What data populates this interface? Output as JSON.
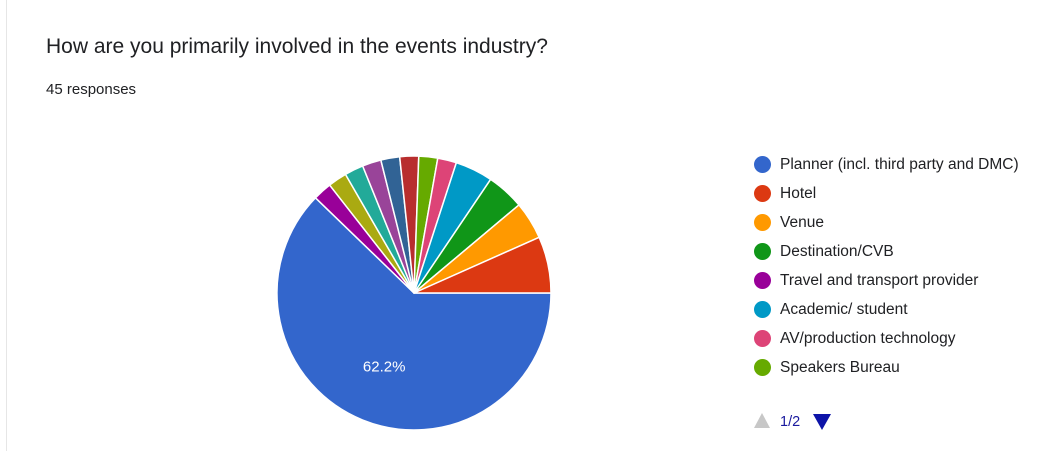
{
  "question": {
    "title": "How are you primarily involved in the events industry?",
    "responses": "45 responses"
  },
  "chart_data": {
    "type": "pie",
    "total_responses": 45,
    "labels": [
      "Planner (incl. third party and DMC)",
      "Hotel",
      "Venue",
      "Destination/CVB",
      "Travel and transport provider",
      "Academic/ student",
      "AV/production technology",
      "Speakers Bureau",
      "",
      "",
      "",
      "",
      ""
    ],
    "values": [
      28,
      3,
      2,
      2,
      1,
      2,
      1,
      1,
      1,
      1,
      1,
      1,
      1
    ],
    "colors": [
      "#3366cc",
      "#dc3912",
      "#ff9900",
      "#109618",
      "#990099",
      "#0099c6",
      "#dd4477",
      "#66aa00",
      "#b82e2e",
      "#316395",
      "#994499",
      "#22aa99",
      "#aaaa11"
    ],
    "slice_labels": [
      "62.2%",
      "",
      "",
      "",
      "",
      "",
      "",
      "",
      "",
      "",
      "",
      "",
      ""
    ],
    "slice_order": [
      0,
      4,
      12,
      11,
      10,
      9,
      8,
      7,
      6,
      5,
      3,
      2,
      1
    ],
    "legend_position": "right"
  },
  "legend": {
    "items": [
      {
        "label": "Planner (incl. third party and DMC)",
        "color": "#3366cc"
      },
      {
        "label": "Hotel",
        "color": "#dc3912"
      },
      {
        "label": "Venue",
        "color": "#ff9900"
      },
      {
        "label": "Destination/CVB",
        "color": "#109618"
      },
      {
        "label": "Travel and transport provider",
        "color": "#990099"
      },
      {
        "label": "Academic/ student",
        "color": "#0099c6"
      },
      {
        "label": "AV/production technology",
        "color": "#dd4477"
      },
      {
        "label": "Speakers Bureau",
        "color": "#66aa00"
      }
    ],
    "pager": {
      "text": "1/2",
      "up_icon": "triangle-up-icon",
      "down_icon": "triangle-down-icon",
      "up_color": "#c7c7c7",
      "down_color": "#0d14a8"
    }
  }
}
